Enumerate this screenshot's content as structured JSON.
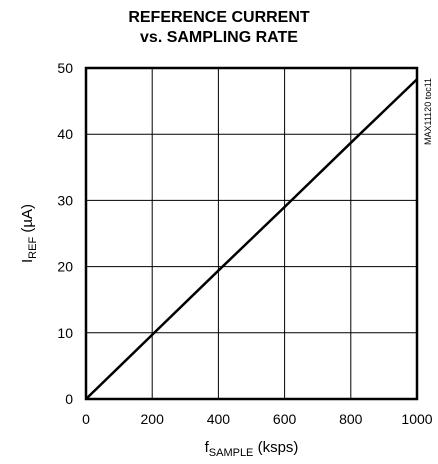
{
  "chart_data": {
    "type": "line",
    "title_line1": "REFERENCE CURRENT",
    "title_line2": "vs. SAMPLING RATE",
    "xlabel_main": "f",
    "xlabel_sub": "SAMPLE",
    "xlabel_tail": " (ksps)",
    "ylabel_main": "I",
    "ylabel_sub": "REF",
    "ylabel_tail": " (µA)",
    "xlim": [
      0,
      1000
    ],
    "ylim": [
      0,
      50
    ],
    "xticks": [
      0,
      200,
      400,
      600,
      800,
      1000
    ],
    "yticks": [
      0,
      10,
      20,
      30,
      40,
      50
    ],
    "grid": true,
    "series": [
      {
        "x": [
          0,
          200,
          400,
          600,
          800,
          1000
        ],
        "y": [
          0,
          9.7,
          19.4,
          29.0,
          38.7,
          48.3
        ]
      }
    ],
    "annotation": "MAX11120 toc11",
    "line_color": "#000000"
  }
}
